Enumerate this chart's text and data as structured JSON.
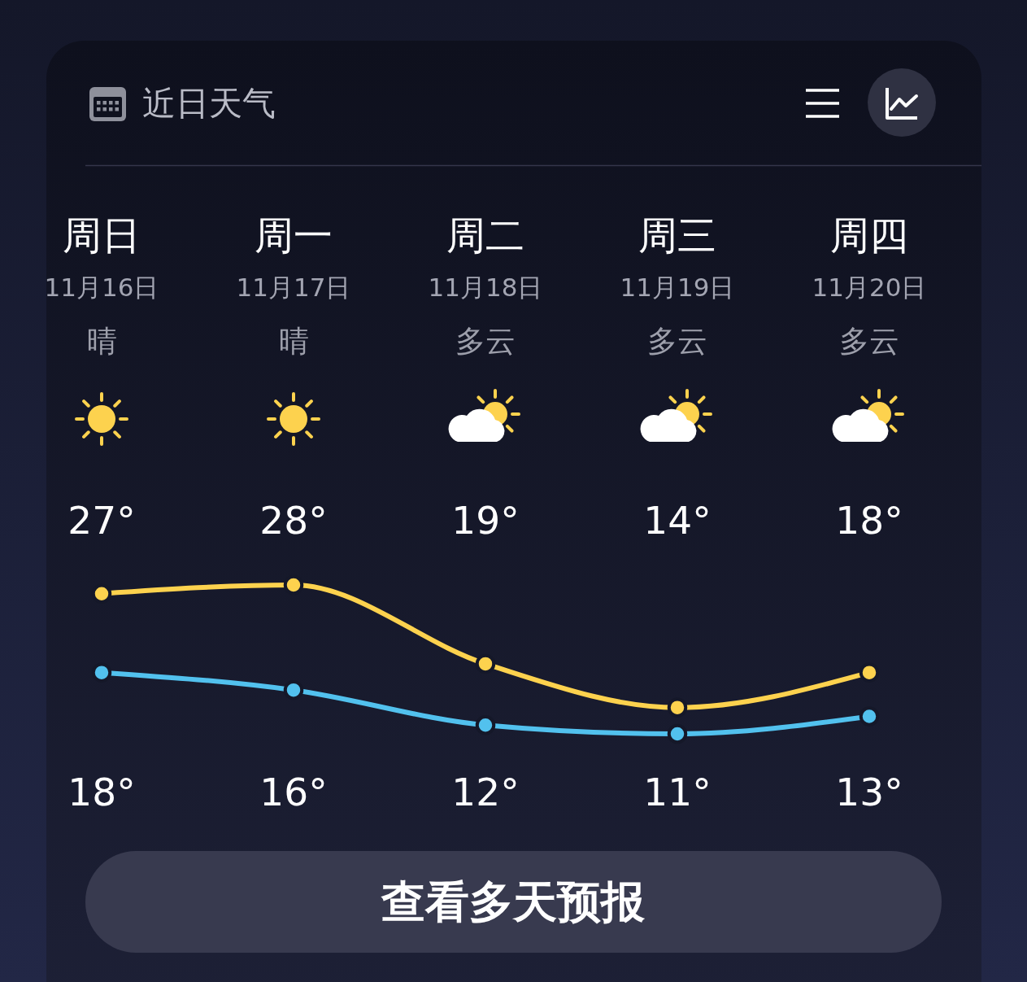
{
  "chart_data": {
    "type": "line",
    "title": "近日天气",
    "categories": [
      "周日",
      "周一",
      "周二",
      "周三",
      "周四"
    ],
    "series": [
      {
        "color": "#fdd24e",
        "values": [
          27,
          28,
          19,
          14,
          18
        ],
        "value_labels": [
          "27°",
          "28°",
          "19°",
          "14°",
          "18°"
        ]
      },
      {
        "color": "#52c1ee",
        "values": [
          18,
          16,
          12,
          11,
          13
        ],
        "value_labels": [
          "18°",
          "16°",
          "12°",
          "11°",
          "13°"
        ]
      }
    ],
    "tick_labels": "x",
    "marker": "circle",
    "line_style": "solid",
    "annotations": [
      "11月16日",
      "晴",
      "11月17日",
      "晴",
      "11月18日",
      "多云",
      "11月19日",
      "多云",
      "11月20日",
      "多云",
      "查看多天预报"
    ]
  }
}
